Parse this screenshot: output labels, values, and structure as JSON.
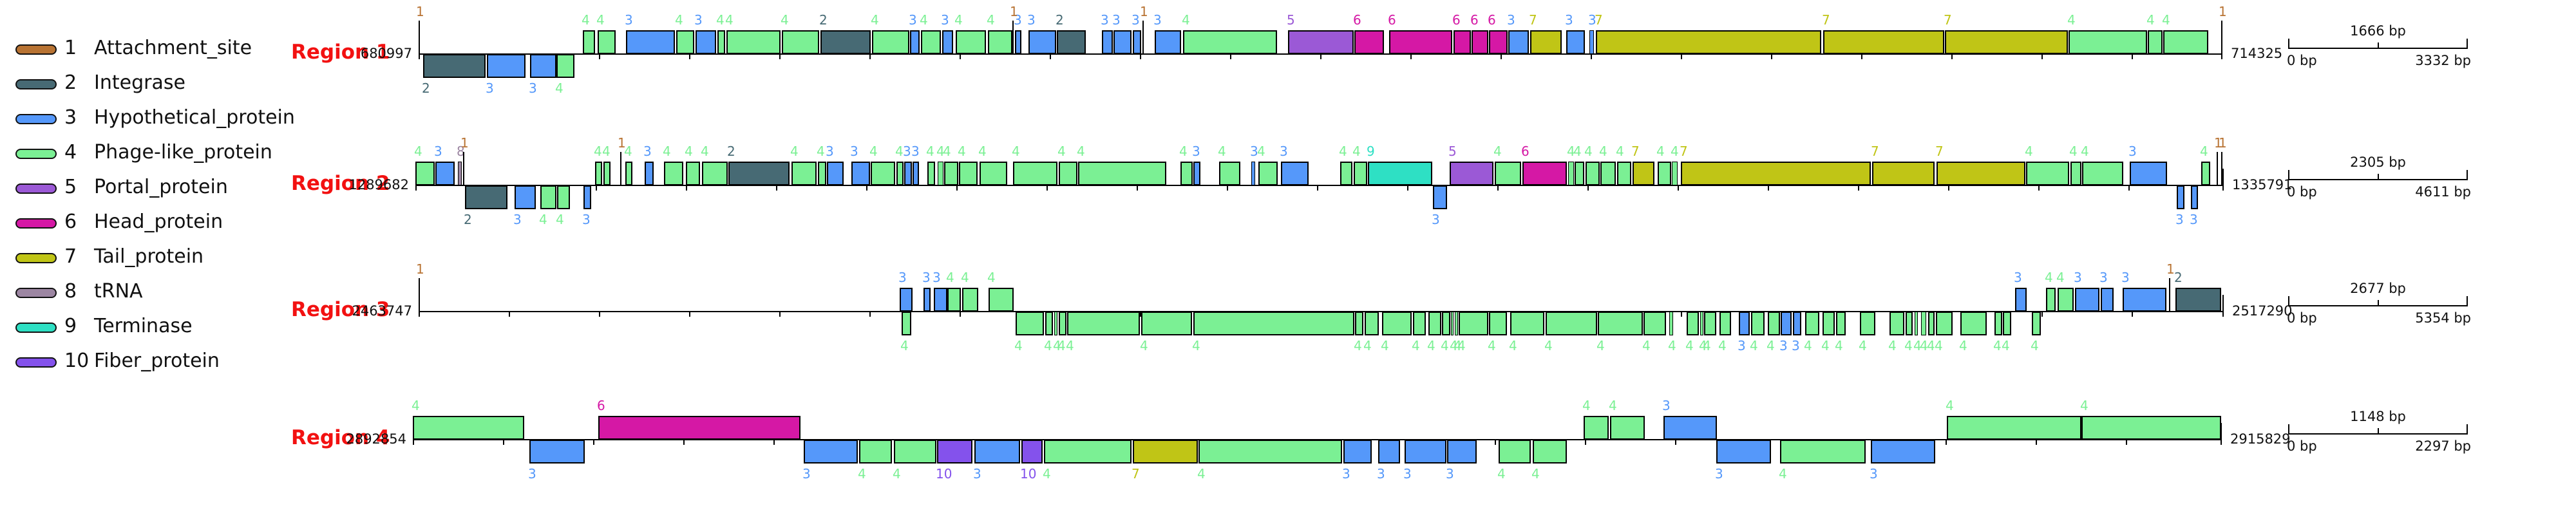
{
  "colors": {
    "region_label": "#f21111",
    "track_line": "#000000",
    "gene_border": "#000000"
  },
  "legend": {
    "items": [
      {
        "num": "1",
        "label": "Attachment_site",
        "color": "#b87333"
      },
      {
        "num": "2",
        "label": "Integrase",
        "color": "#476a74"
      },
      {
        "num": "3",
        "label": "Hypothetical_protein",
        "color": "#5598fa"
      },
      {
        "num": "4",
        "label": "Phage-like_protein",
        "color": "#7bf094"
      },
      {
        "num": "5",
        "label": "Portal_protein",
        "color": "#9b59d6"
      },
      {
        "num": "6",
        "label": "Head_protein",
        "color": "#d518a5"
      },
      {
        "num": "7",
        "label": "Tail_protein",
        "color": "#c0c516"
      },
      {
        "num": "8",
        "label": "tRNA",
        "color": "#9c86a2"
      },
      {
        "num": "9",
        "label": "Terminase",
        "color": "#2ee0c4"
      },
      {
        "num": "10",
        "label": "Fiber_protein",
        "color": "#8452ec"
      }
    ]
  },
  "regions": [
    {
      "name": "Region 1",
      "start": "680997",
      "end": "714325",
      "baseline": 84,
      "track": [
        650,
        3450
      ],
      "scale": {
        "left": "0 bp",
        "mid": "1666 bp",
        "right": "3332 bp"
      },
      "atts": [
        [
          650,
          "1"
        ],
        [
          1572,
          "1"
        ],
        [
          1774,
          "1"
        ],
        [
          3449,
          "1"
        ]
      ],
      "genes": [
        [
          657,
          97,
          2,
          -1
        ],
        [
          756,
          60,
          3,
          -1
        ],
        [
          823,
          41,
          3,
          -1
        ],
        [
          864,
          28,
          4,
          -1
        ],
        [
          905,
          19,
          4,
          1
        ],
        [
          928,
          28,
          4,
          1
        ],
        [
          972,
          76,
          3,
          1
        ],
        [
          1050,
          28,
          4,
          1
        ],
        [
          1080,
          32,
          3,
          1
        ],
        [
          1114,
          12,
          4,
          1
        ],
        [
          1128,
          84,
          4,
          1
        ],
        [
          1214,
          58,
          4,
          1
        ],
        [
          1274,
          78,
          2,
          1
        ],
        [
          1354,
          58,
          4,
          1
        ],
        [
          1413,
          15,
          3,
          1
        ],
        [
          1430,
          31,
          4,
          1
        ],
        [
          1463,
          17,
          3,
          1
        ],
        [
          1484,
          47,
          4,
          1
        ],
        [
          1534,
          38,
          4,
          1
        ],
        [
          1576,
          10,
          3,
          1
        ],
        [
          1597,
          43,
          3,
          1
        ],
        [
          1641,
          45,
          2,
          1
        ],
        [
          1711,
          17,
          3,
          1
        ],
        [
          1729,
          28,
          3,
          1
        ],
        [
          1759,
          13,
          3,
          1
        ],
        [
          1793,
          41,
          3,
          1
        ],
        [
          1837,
          146,
          4,
          1
        ],
        [
          2000,
          102,
          5,
          1
        ],
        [
          2103,
          46,
          6,
          1
        ],
        [
          2157,
          98,
          6,
          1
        ],
        [
          2257,
          27,
          6,
          1
        ],
        [
          2285,
          26,
          6,
          1
        ],
        [
          2312,
          29,
          6,
          1
        ],
        [
          2342,
          32,
          3,
          1
        ],
        [
          2376,
          49,
          7,
          1
        ],
        [
          2432,
          29,
          3,
          1
        ],
        [
          2468,
          7,
          3,
          1
        ],
        [
          2478,
          350,
          7,
          1
        ],
        [
          2831,
          188,
          7,
          1
        ],
        [
          3020,
          191,
          7,
          1
        ],
        [
          3212,
          122,
          4,
          1
        ],
        [
          3335,
          23,
          4,
          1
        ],
        [
          3359,
          70,
          4,
          1
        ]
      ]
    },
    {
      "name": "Region 2",
      "start": "1289682",
      "end": "1335791",
      "baseline": 288,
      "track": [
        645,
        3452
      ],
      "scale": {
        "left": "0 bp",
        "mid": "2305 bp",
        "right": "4611 bp"
      },
      "atts": [
        [
          719,
          "1"
        ],
        [
          963,
          "1"
        ],
        [
          3442,
          "1"
        ],
        [
          3449,
          "1"
        ]
      ],
      "genes": [
        [
          645,
          30,
          4,
          1
        ],
        [
          676,
          30,
          3,
          1
        ],
        [
          711,
          6,
          8,
          1
        ],
        [
          722,
          66,
          2,
          -1
        ],
        [
          799,
          33,
          3,
          -1
        ],
        [
          839,
          25,
          4,
          -1
        ],
        [
          865,
          20,
          4,
          -1
        ],
        [
          906,
          12,
          3,
          -1
        ],
        [
          924,
          11,
          4,
          1
        ],
        [
          937,
          11,
          4,
          1
        ],
        [
          971,
          11,
          4,
          1
        ],
        [
          1001,
          14,
          3,
          1
        ],
        [
          1031,
          30,
          4,
          1
        ],
        [
          1065,
          22,
          4,
          1
        ],
        [
          1090,
          40,
          4,
          1
        ],
        [
          1131,
          95,
          2,
          1
        ],
        [
          1229,
          39,
          4,
          1
        ],
        [
          1270,
          13,
          4,
          1
        ],
        [
          1284,
          26,
          3,
          1
        ],
        [
          1322,
          29,
          3,
          1
        ],
        [
          1352,
          38,
          4,
          1
        ],
        [
          1392,
          11,
          4,
          1
        ],
        [
          1404,
          12,
          3,
          1
        ],
        [
          1417,
          10,
          3,
          1
        ],
        [
          1440,
          12,
          4,
          1
        ],
        [
          1456,
          9,
          4,
          1
        ],
        [
          1466,
          22,
          4,
          1
        ],
        [
          1489,
          29,
          4,
          1
        ],
        [
          1521,
          43,
          4,
          1
        ],
        [
          1573,
          69,
          4,
          1
        ],
        [
          1644,
          29,
          4,
          1
        ],
        [
          1674,
          137,
          4,
          1
        ],
        [
          1833,
          19,
          4,
          1
        ],
        [
          1853,
          11,
          3,
          1
        ],
        [
          1893,
          33,
          4,
          1
        ],
        [
          1943,
          6,
          3,
          1
        ],
        [
          1954,
          30,
          4,
          1
        ],
        [
          1989,
          43,
          3,
          1
        ],
        [
          2081,
          19,
          4,
          1
        ],
        [
          2102,
          21,
          4,
          1
        ],
        [
          2124,
          100,
          9,
          1
        ],
        [
          2225,
          22,
          3,
          -1
        ],
        [
          2251,
          68,
          5,
          1
        ],
        [
          2321,
          41,
          4,
          1
        ],
        [
          2364,
          69,
          6,
          1
        ],
        [
          2435,
          9,
          4,
          1
        ],
        [
          2445,
          15,
          4,
          1
        ],
        [
          2462,
          22,
          4,
          1
        ],
        [
          2485,
          24,
          4,
          1
        ],
        [
          2511,
          22,
          4,
          1
        ],
        [
          2535,
          34,
          7,
          1
        ],
        [
          2574,
          21,
          4,
          1
        ],
        [
          2596,
          9,
          4,
          1
        ],
        [
          2610,
          295,
          7,
          1
        ],
        [
          2907,
          97,
          7,
          1
        ],
        [
          3007,
          138,
          7,
          1
        ],
        [
          3146,
          67,
          4,
          1
        ],
        [
          3215,
          17,
          4,
          1
        ],
        [
          3233,
          64,
          4,
          1
        ],
        [
          3307,
          58,
          3,
          1
        ],
        [
          3380,
          12,
          3,
          -1
        ],
        [
          3402,
          11,
          3,
          -1
        ],
        [
          3418,
          14,
          4,
          1
        ]
      ]
    },
    {
      "name": "Region 3",
      "start": "2463747",
      "end": "2517290",
      "baseline": 484,
      "track": [
        650,
        3452
      ],
      "scale": {
        "left": "0 bp",
        "mid": "2677 bp",
        "right": "5354 bp"
      },
      "atts": [
        [
          650,
          "1"
        ],
        [
          3368,
          "1"
        ]
      ],
      "genes": [
        [
          1397,
          20,
          3,
          1
        ],
        [
          1400,
          15,
          4,
          -1
        ],
        [
          1434,
          11,
          3,
          1
        ],
        [
          1450,
          21,
          3,
          1
        ],
        [
          1471,
          21,
          4,
          1
        ],
        [
          1494,
          25,
          4,
          1
        ],
        [
          1535,
          39,
          4,
          1
        ],
        [
          1577,
          44,
          4,
          -1
        ],
        [
          1623,
          12,
          4,
          -1
        ],
        [
          1637,
          5,
          4,
          -1
        ],
        [
          1644,
          12,
          4,
          -1
        ],
        [
          1657,
          113,
          4,
          -1
        ],
        [
          1772,
          79,
          4,
          -1
        ],
        [
          1853,
          250,
          4,
          -1
        ],
        [
          2104,
          13,
          4,
          -1
        ],
        [
          2119,
          22,
          4,
          -1
        ],
        [
          2146,
          46,
          4,
          -1
        ],
        [
          2194,
          20,
          4,
          -1
        ],
        [
          2218,
          20,
          4,
          -1
        ],
        [
          2239,
          13,
          4,
          -1
        ],
        [
          2253,
          4,
          4,
          -1
        ],
        [
          2259,
          5,
          4,
          -1
        ],
        [
          2265,
          46,
          4,
          -1
        ],
        [
          2312,
          28,
          4,
          -1
        ],
        [
          2345,
          53,
          4,
          -1
        ],
        [
          2400,
          80,
          4,
          -1
        ],
        [
          2481,
          70,
          4,
          -1
        ],
        [
          2552,
          35,
          4,
          -1
        ],
        [
          2592,
          6,
          4,
          -1
        ],
        [
          2619,
          19,
          4,
          -1
        ],
        [
          2640,
          5,
          4,
          -1
        ],
        [
          2646,
          19,
          4,
          -1
        ],
        [
          2670,
          18,
          4,
          -1
        ],
        [
          2700,
          17,
          3,
          -1
        ],
        [
          2719,
          21,
          4,
          -1
        ],
        [
          2745,
          19,
          4,
          -1
        ],
        [
          2765,
          17,
          3,
          -1
        ],
        [
          2784,
          13,
          3,
          -1
        ],
        [
          2803,
          22,
          4,
          -1
        ],
        [
          2830,
          19,
          4,
          -1
        ],
        [
          2851,
          15,
          4,
          -1
        ],
        [
          2888,
          24,
          4,
          -1
        ],
        [
          2934,
          23,
          4,
          -1
        ],
        [
          2959,
          11,
          4,
          -1
        ],
        [
          2973,
          5,
          4,
          -1
        ],
        [
          2983,
          8,
          4,
          -1
        ],
        [
          2994,
          10,
          4,
          -1
        ],
        [
          3006,
          26,
          4,
          -1
        ],
        [
          3044,
          41,
          4,
          -1
        ],
        [
          3097,
          12,
          4,
          -1
        ],
        [
          3110,
          13,
          4,
          -1
        ],
        [
          3129,
          18,
          3,
          1
        ],
        [
          3155,
          14,
          4,
          -1
        ],
        [
          3177,
          15,
          4,
          1
        ],
        [
          3195,
          25,
          4,
          1
        ],
        [
          3222,
          38,
          3,
          1
        ],
        [
          3262,
          20,
          3,
          1
        ],
        [
          3296,
          68,
          3,
          1
        ],
        [
          3378,
          71,
          2,
          1
        ]
      ]
    },
    {
      "name": "Region 4",
      "start": "2892854",
      "end": "2915829",
      "baseline": 683,
      "track": [
        641,
        3449
      ],
      "scale": {
        "left": "0 bp",
        "mid": "1148 bp",
        "right": "2297 bp"
      },
      "atts": [],
      "genes": [
        [
          641,
          173,
          4,
          1
        ],
        [
          822,
          86,
          3,
          -1
        ],
        [
          929,
          314,
          6,
          1
        ],
        [
          1248,
          84,
          3,
          -1
        ],
        [
          1334,
          51,
          4,
          -1
        ],
        [
          1388,
          66,
          4,
          -1
        ],
        [
          1455,
          55,
          10,
          -1
        ],
        [
          1513,
          71,
          3,
          -1
        ],
        [
          1586,
          33,
          10,
          -1
        ],
        [
          1621,
          136,
          4,
          -1
        ],
        [
          1759,
          101,
          7,
          -1
        ],
        [
          1861,
          223,
          4,
          -1
        ],
        [
          2086,
          44,
          3,
          -1
        ],
        [
          2140,
          34,
          3,
          -1
        ],
        [
          2181,
          65,
          3,
          -1
        ],
        [
          2247,
          46,
          3,
          -1
        ],
        [
          2327,
          50,
          4,
          -1
        ],
        [
          2380,
          53,
          4,
          -1
        ],
        [
          2459,
          39,
          4,
          1
        ],
        [
          2500,
          54,
          4,
          1
        ],
        [
          2583,
          83,
          3,
          1
        ],
        [
          2665,
          85,
          3,
          -1
        ],
        [
          2764,
          133,
          4,
          -1
        ],
        [
          2905,
          100,
          3,
          -1
        ],
        [
          3023,
          209,
          4,
          1
        ],
        [
          3232,
          217,
          4,
          1
        ]
      ]
    }
  ]
}
